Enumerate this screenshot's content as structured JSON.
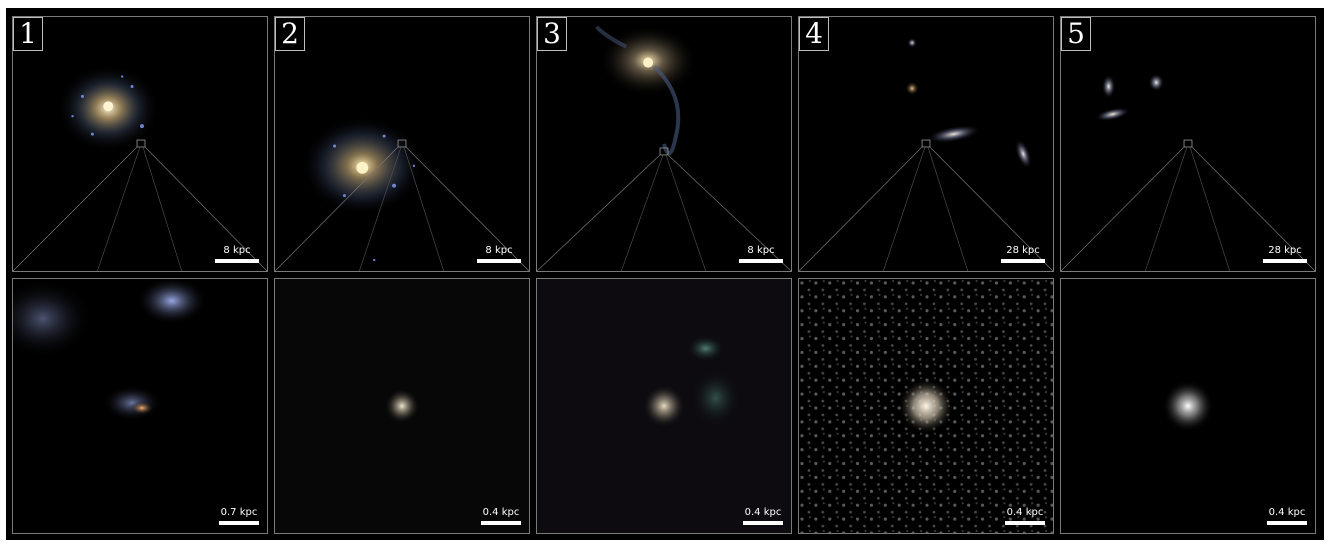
{
  "panels": [
    {
      "number": "1",
      "top_scale": "8 kpc",
      "bottom_scale": "0.7 kpc"
    },
    {
      "number": "2",
      "top_scale": "8 kpc",
      "bottom_scale": "0.4 kpc"
    },
    {
      "number": "3",
      "top_scale": "8 kpc",
      "bottom_scale": "0.4 kpc"
    },
    {
      "number": "4",
      "top_scale": "28 kpc",
      "bottom_scale": "0.4 kpc"
    },
    {
      "number": "5",
      "top_scale": "28 kpc",
      "bottom_scale": "0.4 kpc"
    }
  ],
  "colors": {
    "background": "#000000",
    "frame": "#7a7a7a",
    "text": "#ffffff"
  }
}
